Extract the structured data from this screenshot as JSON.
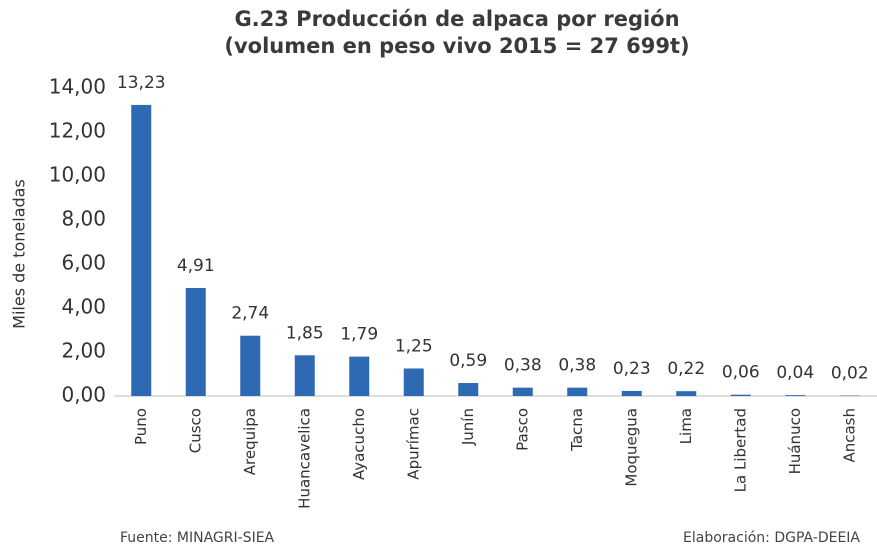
{
  "chart_data": {
    "type": "bar",
    "title": "G.23 Producción de alpaca por región",
    "subtitle": "(volumen en peso vivo 2015 = 27 699t)",
    "y_label": "Miles de toneladas",
    "categories": [
      "Puno",
      "Cusco",
      "Arequipa",
      "Huancavelica",
      "Ayacucho",
      "Apurímac",
      "Junín",
      "Pasco",
      "Tacna",
      "Moquegua",
      "Lima",
      "La Libertad",
      "Huánuco",
      "Ancash"
    ],
    "values": [
      13.23,
      4.91,
      2.74,
      1.85,
      1.79,
      1.25,
      0.59,
      0.38,
      0.38,
      0.23,
      0.22,
      0.06,
      0.04,
      0.02
    ],
    "value_labels": [
      "13,23",
      "4,91",
      "2,74",
      "1,85",
      "1,79",
      "1,25",
      "0,59",
      "0,38",
      "0,38",
      "0,23",
      "0,22",
      "0,06",
      "0,04",
      "0,02"
    ],
    "color": "#2e69b3",
    "ylim": [
      0,
      14
    ],
    "yticks": [
      {
        "value": 0,
        "label": "0,00"
      },
      {
        "value": 2,
        "label": "2,00"
      },
      {
        "value": 4,
        "label": "4,00"
      },
      {
        "value": 6,
        "label": "6,00"
      },
      {
        "value": 8,
        "label": "8,00"
      },
      {
        "value": 10,
        "label": "10,00"
      },
      {
        "value": 12,
        "label": "12,00"
      },
      {
        "value": 14,
        "label": "14,00"
      }
    ],
    "grid": false,
    "source": "Fuente: MINAGRI-SIEA",
    "credit": "Elaboración: DGPA-DEEIA"
  }
}
